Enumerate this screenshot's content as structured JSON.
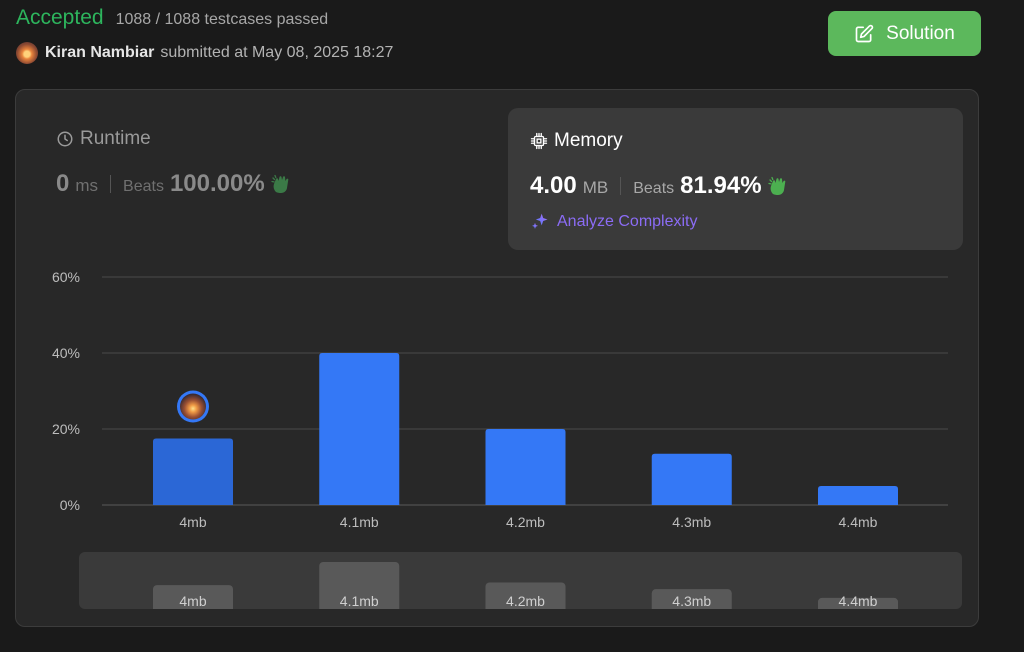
{
  "header": {
    "status": "Accepted",
    "testcases": "1088 / 1088 testcases passed",
    "submitter": "Kiran Nambiar",
    "submitted_at": "submitted at May 08, 2025 18:27",
    "solution_label": "Solution"
  },
  "runtime": {
    "title": "Runtime",
    "value": "0",
    "unit": "ms",
    "beats_label": "Beats",
    "beats_pct": "100.00%"
  },
  "memory": {
    "title": "Memory",
    "value": "4.00",
    "unit": "MB",
    "beats_label": "Beats",
    "beats_pct": "81.94%",
    "analyze_label": "Analyze Complexity"
  },
  "colors": {
    "accent_green": "#2db55d",
    "solution_green": "#5cb85c",
    "bar_blue": "#3478f6",
    "bar_selected": "#2b67d6",
    "analyze_purple": "#8b6cf5"
  },
  "chart_data": {
    "type": "bar",
    "categories": [
      "4mb",
      "4.1mb",
      "4.2mb",
      "4.3mb",
      "4.4mb"
    ],
    "values": [
      17.5,
      40,
      20,
      13.5,
      5
    ],
    "ylim": [
      0,
      60
    ],
    "yticks": [
      "0%",
      "20%",
      "40%",
      "60%"
    ],
    "ytick_values": [
      0,
      20,
      40,
      60
    ],
    "selected_index": 0,
    "grid": true,
    "mini_values": [
      17.5,
      40,
      20,
      13.5,
      5
    ]
  },
  "icons": {
    "solution": "edit-icon",
    "runtime": "clock-icon",
    "memory": "chip-icon",
    "beats": "clap-icon",
    "analyze": "sparkle-icon"
  }
}
